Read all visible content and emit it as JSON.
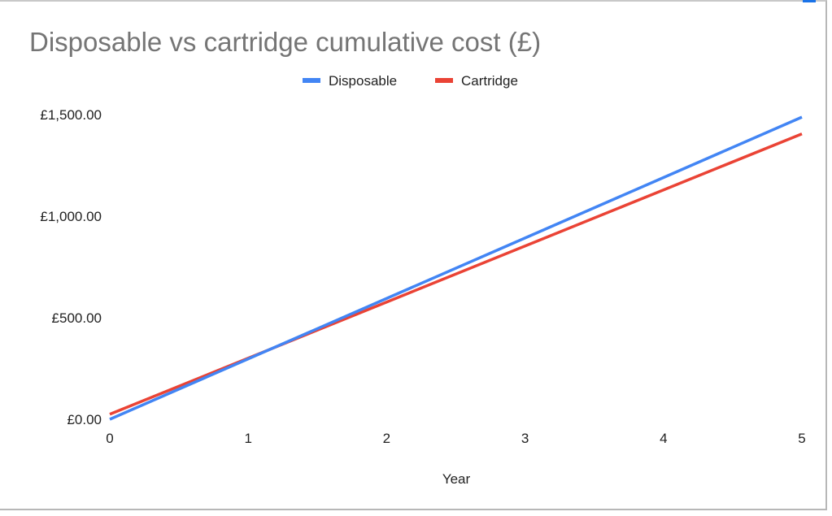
{
  "chart_data": {
    "type": "line",
    "title": "Disposable vs cartridge cumulative cost (£)",
    "xlabel": "Year",
    "ylabel": "",
    "x": [
      0,
      1,
      2,
      3,
      4,
      5
    ],
    "xticks": [
      "0",
      "1",
      "2",
      "3",
      "4",
      "5"
    ],
    "yticks": [
      "£0.00",
      "£500.00",
      "£1,000.00",
      "£1,500.00"
    ],
    "ytick_values": [
      0,
      500,
      1000,
      1500
    ],
    "xlim": [
      0,
      5
    ],
    "ylim": [
      0,
      1500
    ],
    "legend_position": "top",
    "grid": false,
    "series": [
      {
        "name": "Disposable",
        "color": "#4285f4",
        "values": [
          0,
          297.5,
          595,
          892.5,
          1190,
          1487.5
        ]
      },
      {
        "name": "Cartridge",
        "color": "#ea4335",
        "values": [
          25,
          301,
          577,
          853,
          1129,
          1405
        ]
      }
    ]
  }
}
